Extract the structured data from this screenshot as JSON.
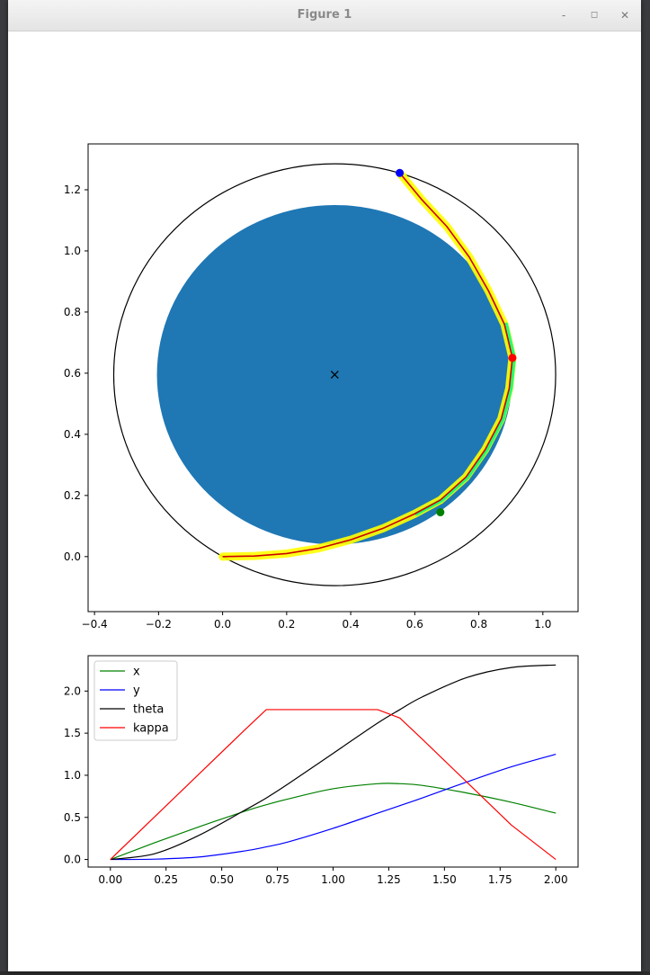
{
  "window": {
    "title": "Figure 1",
    "minimize_glyph": "-",
    "maximize_glyph": "◻",
    "close_glyph": "✕"
  },
  "colors": {
    "disk": "#1f77b4",
    "x": "#008000",
    "y": "#0000ff",
    "theta": "#000000",
    "kappa": "#ff0000",
    "path": "#cc0000",
    "highlight": "#ffff00",
    "highlight_alt": "#00ff80"
  },
  "chart_data": [
    {
      "type": "scatter",
      "xlim": [
        -0.42,
        1.11
      ],
      "ylim": [
        -0.18,
        1.35
      ],
      "x_ticks": [
        "−0.4",
        "−0.2",
        "0.0",
        "0.2",
        "0.4",
        "0.6",
        "0.8",
        "1.0"
      ],
      "x_tick_values": [
        -0.4,
        -0.2,
        0.0,
        0.2,
        0.4,
        0.6,
        0.8,
        1.0
      ],
      "y_ticks": [
        "0.0",
        "0.2",
        "0.4",
        "0.6",
        "0.8",
        "1.0",
        "1.2"
      ],
      "y_tick_values": [
        0.0,
        0.2,
        0.4,
        0.6,
        0.8,
        1.0,
        1.2
      ],
      "grid": false,
      "center": {
        "x": 0.35,
        "y": 0.595,
        "marker": "x"
      },
      "filled_circle": {
        "cx": 0.35,
        "cy": 0.595,
        "r": 0.555
      },
      "outer_circle": {
        "cx": 0.35,
        "cy": 0.595,
        "r": 0.69
      },
      "path": {
        "x": [
          0.0,
          0.1,
          0.2,
          0.3,
          0.4,
          0.5,
          0.6,
          0.68,
          0.76,
          0.82,
          0.87,
          0.895,
          0.905,
          0.88,
          0.83,
          0.77,
          0.7,
          0.62,
          0.553
        ],
        "y": [
          0.0,
          0.002,
          0.01,
          0.027,
          0.055,
          0.092,
          0.14,
          0.185,
          0.26,
          0.35,
          0.45,
          0.55,
          0.65,
          0.76,
          0.87,
          0.98,
          1.08,
          1.17,
          1.255
        ]
      },
      "markers": [
        {
          "x": 0.68,
          "y": 0.145,
          "color": "#008000"
        },
        {
          "x": 0.905,
          "y": 0.65,
          "color": "#ff0000"
        },
        {
          "x": 0.553,
          "y": 1.255,
          "color": "#0000ff"
        }
      ]
    },
    {
      "type": "line",
      "xlim": [
        -0.1,
        2.1
      ],
      "ylim": [
        -0.09,
        2.42
      ],
      "x_ticks": [
        "0.00",
        "0.25",
        "0.50",
        "0.75",
        "1.00",
        "1.25",
        "1.50",
        "1.75",
        "2.00"
      ],
      "x_tick_values": [
        0.0,
        0.25,
        0.5,
        0.75,
        1.0,
        1.25,
        1.5,
        1.75,
        2.0
      ],
      "y_ticks": [
        "0.0",
        "0.5",
        "1.0",
        "1.5",
        "2.0"
      ],
      "y_tick_values": [
        0.0,
        0.5,
        1.0,
        1.5,
        2.0
      ],
      "legend": "upper-left",
      "x": [
        0.0,
        0.2,
        0.4,
        0.6,
        0.7,
        0.8,
        1.0,
        1.2,
        1.3,
        1.4,
        1.6,
        1.8,
        2.0
      ],
      "series": [
        {
          "name": "x",
          "values": [
            0.0,
            0.2,
            0.39,
            0.57,
            0.65,
            0.72,
            0.84,
            0.9,
            0.9,
            0.88,
            0.79,
            0.68,
            0.55
          ]
        },
        {
          "name": "y",
          "values": [
            0.0,
            0.004,
            0.03,
            0.1,
            0.15,
            0.21,
            0.37,
            0.55,
            0.64,
            0.73,
            0.92,
            1.1,
            1.25
          ]
        },
        {
          "name": "theta",
          "values": [
            0.0,
            0.07,
            0.29,
            0.58,
            0.73,
            0.9,
            1.26,
            1.62,
            1.78,
            1.93,
            2.16,
            2.28,
            2.31
          ]
        },
        {
          "name": "kappa",
          "values": [
            0.0,
            0.51,
            1.02,
            1.53,
            1.78,
            1.78,
            1.78,
            1.78,
            1.68,
            1.43,
            0.92,
            0.41,
            0.0
          ]
        }
      ]
    }
  ]
}
